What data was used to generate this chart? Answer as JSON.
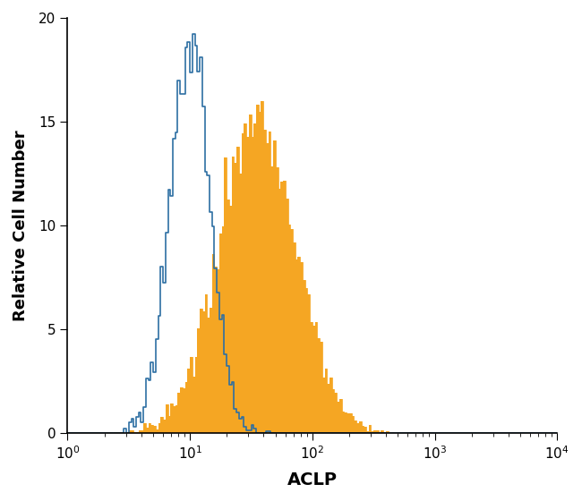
{
  "xlabel": "ACLP",
  "ylabel": "Relative Cell Number",
  "xlim_log": [
    1,
    10000
  ],
  "ylim": [
    0,
    20
  ],
  "yticks": [
    0,
    5,
    10,
    15,
    20
  ],
  "blue_color": "#2E6FA3",
  "orange_color": "#F5A623",
  "background_color": "#ffffff",
  "seed": 42,
  "n_bins": 200
}
